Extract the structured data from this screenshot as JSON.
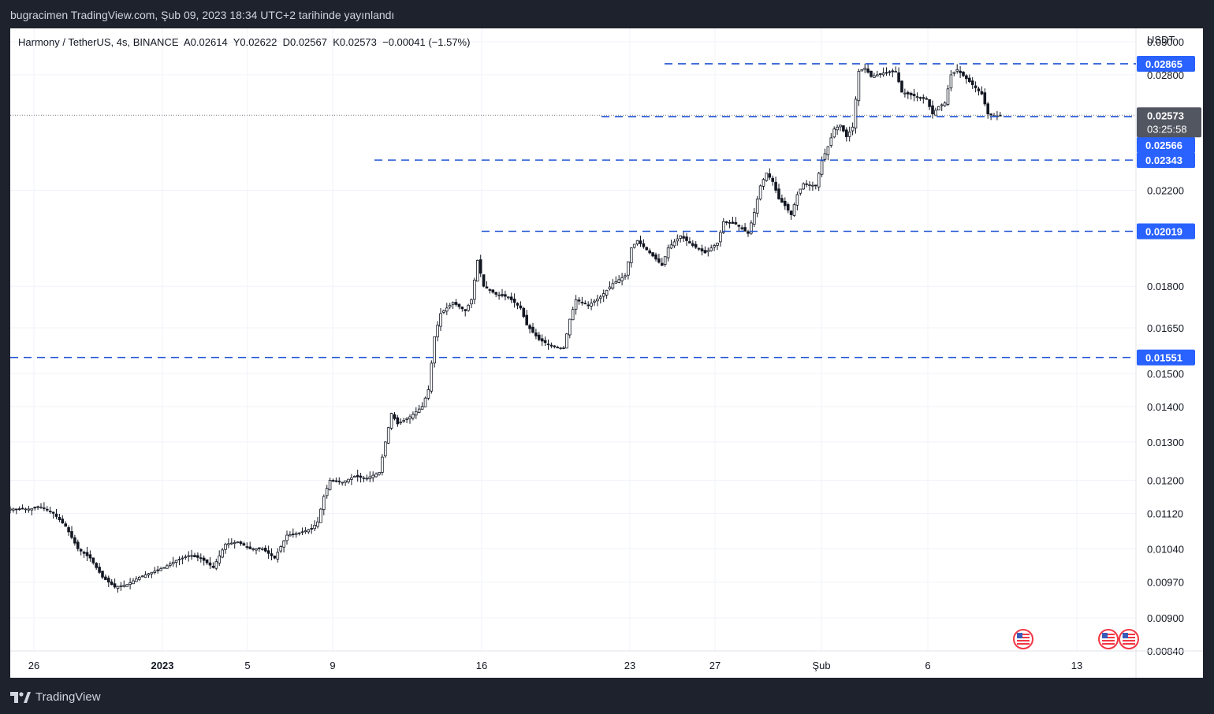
{
  "header": {
    "published_text": "bugracimen TradingView.com, Şub 09, 2023 18:34 UTC+2 tarihinde yayınlandı"
  },
  "legend": {
    "symbol": "Harmony / TetherUS, 4s, BINANCE",
    "open": "A0.02614",
    "high": "Y0.02622",
    "low": "D0.02567",
    "close": "K0.02573",
    "change": "−0.00041 (−1.57%)"
  },
  "footer": {
    "brand": "TradingView"
  },
  "colors": {
    "level_line": "#2155d5",
    "label_bg": "#2962ff",
    "price_label_bg": "#525661",
    "candle": "#131722",
    "grid": "#f0f3fa",
    "frame_bg": "#1e222d"
  },
  "chart_data": {
    "type": "candlestick",
    "currency_label": "USDT",
    "price_axis_scale": "log",
    "y_range": [
      0.0084,
      0.0306
    ],
    "y_ticks": [
      "0.03000",
      "0.02800",
      "0.02200",
      "0.01800",
      "0.01650",
      "0.01500",
      "0.01400",
      "0.01300",
      "0.01200",
      "0.01120",
      "0.01040",
      "0.00970",
      "0.00900",
      "0.00840"
    ],
    "x_ticks": [
      "26",
      "2023",
      "5",
      "9",
      "16",
      "23",
      "27",
      "Şub",
      "6",
      "13"
    ],
    "horizontal_levels": [
      {
        "value": 0.02865,
        "label": "0.02865"
      },
      {
        "value": 0.02566,
        "label": "0.02566"
      },
      {
        "value": 0.02343,
        "label": "0.02343"
      },
      {
        "value": 0.02019,
        "label": "0.02019"
      },
      {
        "value": 0.01551,
        "label": "0.01551"
      }
    ],
    "last_price": {
      "value": 0.02573,
      "label": "0.02573",
      "countdown": "03:25:58"
    },
    "close_path": [
      [
        0,
        0.0113
      ],
      [
        6,
        0.0113
      ],
      [
        10,
        0.01135
      ],
      [
        14,
        0.0112
      ],
      [
        18,
        0.0109
      ],
      [
        22,
        0.0104
      ],
      [
        26,
        0.0102
      ],
      [
        30,
        0.0098
      ],
      [
        34,
        0.0096
      ],
      [
        38,
        0.00965
      ],
      [
        42,
        0.0098
      ],
      [
        46,
        0.0099
      ],
      [
        50,
        0.01
      ],
      [
        54,
        0.01015
      ],
      [
        58,
        0.01025
      ],
      [
        62,
        0.0102
      ],
      [
        66,
        0.01
      ],
      [
        70,
        0.0105
      ],
      [
        74,
        0.01055
      ],
      [
        78,
        0.0104
      ],
      [
        82,
        0.0104
      ],
      [
        86,
        0.0102
      ],
      [
        90,
        0.0107
      ],
      [
        94,
        0.01075
      ],
      [
        98,
        0.01085
      ],
      [
        100,
        0.011
      ],
      [
        102,
        0.0116
      ],
      [
        104,
        0.012
      ],
      [
        108,
        0.01195
      ],
      [
        112,
        0.0121
      ],
      [
        116,
        0.01205
      ],
      [
        120,
        0.0122
      ],
      [
        122,
        0.013
      ],
      [
        124,
        0.0138
      ],
      [
        126,
        0.0135
      ],
      [
        130,
        0.0137
      ],
      [
        134,
        0.014
      ],
      [
        136,
        0.0145
      ],
      [
        138,
        0.0162
      ],
      [
        140,
        0.017
      ],
      [
        144,
        0.0174
      ],
      [
        148,
        0.0171
      ],
      [
        150,
        0.0175
      ],
      [
        152,
        0.019
      ],
      [
        154,
        0.018
      ],
      [
        158,
        0.0177
      ],
      [
        162,
        0.0176
      ],
      [
        166,
        0.0172
      ],
      [
        168,
        0.0166
      ],
      [
        172,
        0.0161
      ],
      [
        176,
        0.0159
      ],
      [
        180,
        0.0158
      ],
      [
        182,
        0.0168
      ],
      [
        184,
        0.0175
      ],
      [
        188,
        0.0173
      ],
      [
        192,
        0.0176
      ],
      [
        196,
        0.0181
      ],
      [
        200,
        0.0184
      ],
      [
        202,
        0.0195
      ],
      [
        204,
        0.0198
      ],
      [
        208,
        0.0193
      ],
      [
        212,
        0.0188
      ],
      [
        214,
        0.0195
      ],
      [
        218,
        0.02
      ],
      [
        222,
        0.0196
      ],
      [
        226,
        0.0193
      ],
      [
        230,
        0.0197
      ],
      [
        232,
        0.0206
      ],
      [
        236,
        0.0205
      ],
      [
        240,
        0.0201
      ],
      [
        242,
        0.021
      ],
      [
        244,
        0.0222
      ],
      [
        246,
        0.0228
      ],
      [
        248,
        0.0224
      ],
      [
        250,
        0.0216
      ],
      [
        252,
        0.0213
      ],
      [
        254,
        0.0209
      ],
      [
        256,
        0.0218
      ],
      [
        258,
        0.0223
      ],
      [
        262,
        0.0222
      ],
      [
        264,
        0.0234
      ],
      [
        266,
        0.0241
      ],
      [
        268,
        0.025
      ],
      [
        270,
        0.0252
      ],
      [
        272,
        0.0246
      ],
      [
        274,
        0.0251
      ],
      [
        276,
        0.0282
      ],
      [
        278,
        0.0284
      ],
      [
        280,
        0.0279
      ],
      [
        284,
        0.0281
      ],
      [
        288,
        0.0282
      ],
      [
        290,
        0.027
      ],
      [
        294,
        0.0268
      ],
      [
        298,
        0.0266
      ],
      [
        300,
        0.0258
      ],
      [
        302,
        0.0262
      ],
      [
        304,
        0.0264
      ],
      [
        306,
        0.028
      ],
      [
        308,
        0.0283
      ],
      [
        312,
        0.0276
      ],
      [
        316,
        0.0269
      ],
      [
        318,
        0.0258
      ],
      [
        320,
        0.0257
      ],
      [
        322,
        0.0257
      ]
    ]
  }
}
